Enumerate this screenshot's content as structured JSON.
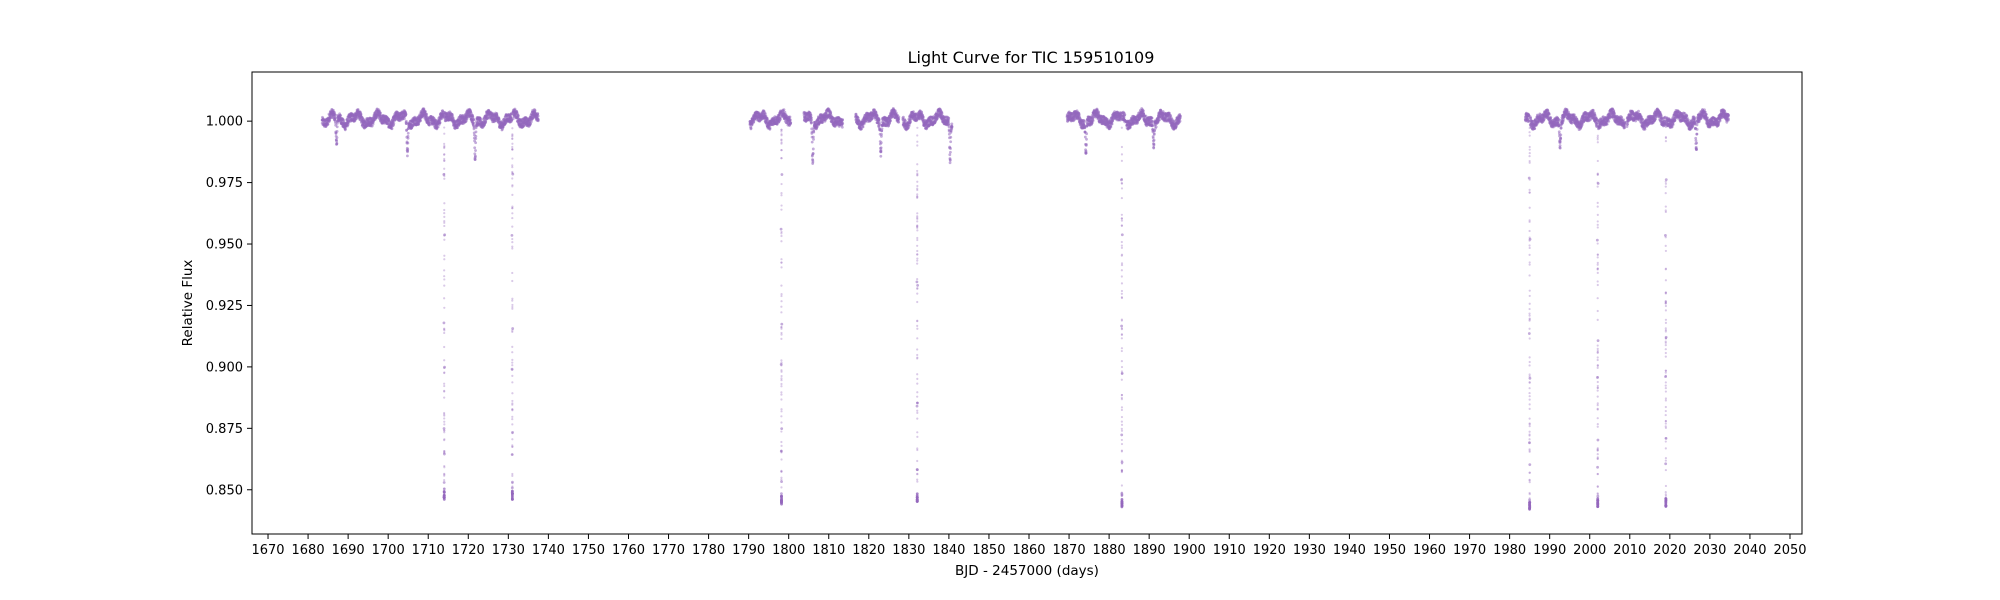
{
  "chart_data": {
    "type": "scatter",
    "title": "Light Curve for TIC 159510109",
    "xlabel": "BJD - 2457000 (days)",
    "ylabel": "Relative Flux",
    "xlim": [
      1666,
      2053
    ],
    "ylim": [
      0.832,
      1.02
    ],
    "xticks": [
      1670,
      1680,
      1690,
      1700,
      1710,
      1720,
      1730,
      1740,
      1750,
      1760,
      1770,
      1780,
      1790,
      1800,
      1810,
      1820,
      1830,
      1840,
      1850,
      1860,
      1870,
      1880,
      1890,
      1900,
      1910,
      1920,
      1930,
      1940,
      1950,
      1960,
      1970,
      1980,
      1990,
      2000,
      2010,
      2020,
      2030,
      2040,
      2050
    ],
    "yticks": [
      0.85,
      0.875,
      0.9,
      0.925,
      0.95,
      0.975,
      1.0
    ],
    "ytick_labels": [
      "0.850",
      "0.875",
      "0.900",
      "0.925",
      "0.950",
      "0.975",
      "1.000"
    ],
    "grid": false,
    "marker_color": "#9467bd",
    "segments": [
      [
        1683.5,
        1710.3
      ],
      [
        1710.5,
        1737.5
      ],
      [
        1790.3,
        1800.5
      ],
      [
        1803.8,
        1813.5
      ],
      [
        1816.7,
        1827.5
      ],
      [
        1828.5,
        1840.8
      ],
      [
        1869.5,
        1884.0
      ],
      [
        1884.3,
        1897.8
      ],
      [
        1983.9,
        2008.8
      ],
      [
        2009.3,
        2034.7
      ]
    ],
    "transits": [
      {
        "t": 1714.0,
        "depth_min": 0.846
      },
      {
        "t": 1731.0,
        "depth_min": 0.846
      },
      {
        "t": 1798.2,
        "depth_min": 0.844
      },
      {
        "t": 1832.1,
        "depth_min": 0.845
      },
      {
        "t": 1883.2,
        "depth_min": 0.843
      },
      {
        "t": 1985.0,
        "depth_min": 0.842
      },
      {
        "t": 2002.0,
        "depth_min": 0.843
      },
      {
        "t": 2019.0,
        "depth_min": 0.843
      }
    ],
    "secondary_dips": [
      {
        "t": 1687.1,
        "depth_min": 0.989
      },
      {
        "t": 1704.8,
        "depth_min": 0.987
      },
      {
        "t": 1721.7,
        "depth_min": 0.985
      },
      {
        "t": 1806.0,
        "depth_min": 0.983
      },
      {
        "t": 1823.0,
        "depth_min": 0.988
      },
      {
        "t": 1840.3,
        "depth_min": 0.984
      },
      {
        "t": 1874.2,
        "depth_min": 0.986
      },
      {
        "t": 1891.1,
        "depth_min": 0.991
      },
      {
        "t": 1992.6,
        "depth_min": 0.99
      },
      {
        "t": 2026.6,
        "depth_min": 0.987
      }
    ]
  }
}
